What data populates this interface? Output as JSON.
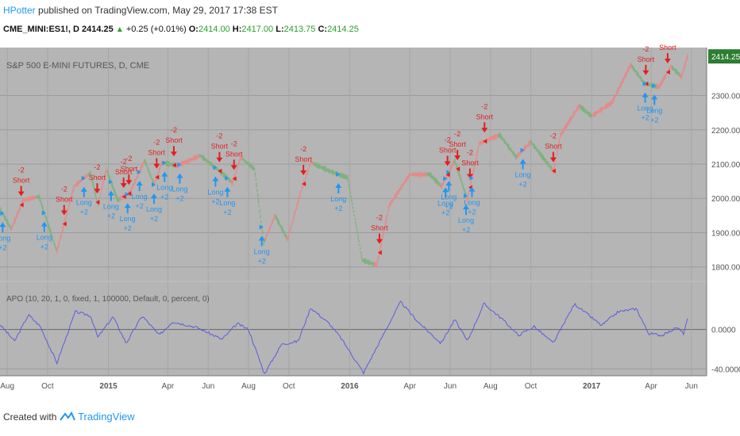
{
  "header": {
    "author": "HPotter",
    "published_text": "published on TradingView.com, May 29, 2017 17:38 EST",
    "symbol": "CME_MINI:ES1!, D",
    "last_price": "2414.25",
    "change": "+0.25 (+0.01%)",
    "o_label": "O:",
    "o_value": "2414.00",
    "h_label": "H:",
    "h_value": "2417.00",
    "l_label": "L:",
    "l_value": "2413.75",
    "c_label": "C:",
    "c_value": "2414.25"
  },
  "footer": {
    "created_with": "Created with",
    "brand": "TradingView"
  },
  "colors": {
    "pane_bg": "#b5b5b5",
    "up_bar": "#e48a8a",
    "down_bar": "#7fb27f",
    "apo_line": "#5b5be0",
    "short_arrow": "#e31e1e",
    "long_arrow": "#2196F3",
    "price_tag": "#2e7d32"
  },
  "chart_data": [
    {
      "type": "line",
      "title": "S&P 500 E-MINI FUTURES, D, CME",
      "price_tag": "2414.25",
      "last_value": 2414.25,
      "ylim": [
        1760,
        2440
      ],
      "y_ticks": [
        1800,
        1900,
        2000,
        2100,
        2200,
        2300
      ],
      "y_tick_labels": [
        "1800.00",
        "1900.00",
        "2000.00",
        "2100.00",
        "2200.00",
        "2300.00"
      ],
      "x_labels": [
        "Aug",
        "Oct",
        "2015",
        "Apr",
        "Jun",
        "Aug",
        "Oct",
        "2016",
        "Apr",
        "Jun",
        "Aug",
        "Oct",
        "2017",
        "Apr",
        "Jun"
      ],
      "x_label_dates": [
        "2014-08-01",
        "2014-10-01",
        "2015-01-01",
        "2015-04-01",
        "2015-06-01",
        "2015-08-01",
        "2015-10-01",
        "2016-01-01",
        "2016-04-01",
        "2016-06-01",
        "2016-08-01",
        "2016-10-01",
        "2017-01-01",
        "2017-04-01",
        "2017-06-01"
      ],
      "x_range": [
        "2014-07-21",
        "2017-06-24"
      ],
      "price_series": [
        [
          "2014-07-21",
          1970
        ],
        [
          "2014-08-07",
          1910
        ],
        [
          "2014-08-25",
          1995
        ],
        [
          "2014-09-18",
          2005
        ],
        [
          "2014-10-15",
          1845
        ],
        [
          "2014-11-10",
          2035
        ],
        [
          "2014-12-05",
          2075
        ],
        [
          "2014-12-16",
          1980
        ],
        [
          "2014-12-29",
          2085
        ],
        [
          "2015-01-15",
          1995
        ],
        [
          "2015-02-02",
          2015
        ],
        [
          "2015-02-25",
          2110
        ],
        [
          "2015-03-11",
          2040
        ],
        [
          "2015-03-23",
          2105
        ],
        [
          "2015-04-15",
          2095
        ],
        [
          "2015-05-20",
          2125
        ],
        [
          "2015-06-15",
          2085
        ],
        [
          "2015-07-08",
          2045
        ],
        [
          "2015-07-20",
          2120
        ],
        [
          "2015-08-10",
          2085
        ],
        [
          "2015-08-24",
          1870
        ],
        [
          "2015-09-10",
          1950
        ],
        [
          "2015-09-29",
          1880
        ],
        [
          "2015-10-20",
          2025
        ],
        [
          "2015-11-03",
          2105
        ],
        [
          "2015-12-01",
          2080
        ],
        [
          "2015-12-29",
          2060
        ],
        [
          "2016-01-20",
          1820
        ],
        [
          "2016-02-11",
          1805
        ],
        [
          "2016-03-01",
          1980
        ],
        [
          "2016-04-01",
          2070
        ],
        [
          "2016-05-01",
          2070
        ],
        [
          "2016-05-19",
          2035
        ],
        [
          "2016-06-08",
          2110
        ],
        [
          "2016-06-27",
          1995
        ],
        [
          "2016-07-15",
          2160
        ],
        [
          "2016-08-15",
          2185
        ],
        [
          "2016-09-09",
          2120
        ],
        [
          "2016-10-01",
          2165
        ],
        [
          "2016-11-04",
          2080
        ],
        [
          "2016-11-15",
          2185
        ],
        [
          "2016-12-13",
          2270
        ],
        [
          "2017-01-01",
          2240
        ],
        [
          "2017-02-01",
          2280
        ],
        [
          "2017-03-01",
          2390
        ],
        [
          "2017-03-22",
          2335
        ],
        [
          "2017-04-13",
          2325
        ],
        [
          "2017-05-01",
          2385
        ],
        [
          "2017-05-17",
          2355
        ],
        [
          "2017-05-26",
          2414.25
        ]
      ],
      "signals": [
        {
          "type": "short",
          "date": "2014-08-22",
          "label": "Short",
          "qty": "-2"
        },
        {
          "type": "long",
          "date": "2014-07-25",
          "label": "Long",
          "qty": "+2"
        },
        {
          "type": "long",
          "date": "2014-09-26",
          "label": "Long",
          "qty": "+2"
        },
        {
          "type": "short",
          "date": "2014-10-26",
          "label": "Short",
          "qty": "-2"
        },
        {
          "type": "long",
          "date": "2014-11-25",
          "label": "Long",
          "qty": "+2"
        },
        {
          "type": "short",
          "date": "2014-12-15",
          "label": "Short",
          "qty": "-2"
        },
        {
          "type": "long",
          "date": "2015-01-05",
          "label": "Long",
          "qty": "+2"
        },
        {
          "type": "short",
          "date": "2015-01-24",
          "label": "Short",
          "qty": "-2"
        },
        {
          "type": "short",
          "date": "2015-02-01",
          "label": "Short",
          "qty": "-2"
        },
        {
          "type": "long",
          "date": "2015-01-30",
          "label": "Long",
          "qty": "+2"
        },
        {
          "type": "long",
          "date": "2015-02-17",
          "label": "Long",
          "qty": "+2"
        },
        {
          "type": "short",
          "date": "2015-03-15",
          "label": "Short",
          "qty": "-2"
        },
        {
          "type": "long",
          "date": "2015-03-11",
          "label": "Long",
          "qty": "+2"
        },
        {
          "type": "long",
          "date": "2015-03-27",
          "label": "Long",
          "qty": "+2"
        },
        {
          "type": "short",
          "date": "2015-04-10",
          "label": "Short",
          "qty": "-2"
        },
        {
          "type": "long",
          "date": "2015-04-19",
          "label": "Long",
          "qty": "+2"
        },
        {
          "type": "short",
          "date": "2015-06-18",
          "label": "Short",
          "qty": "-2"
        },
        {
          "type": "long",
          "date": "2015-06-12",
          "label": "Long",
          "qty": "+2"
        },
        {
          "type": "long",
          "date": "2015-06-30",
          "label": "Long",
          "qty": "+2"
        },
        {
          "type": "short",
          "date": "2015-07-10",
          "label": "Short",
          "qty": "-2"
        },
        {
          "type": "long",
          "date": "2015-08-21",
          "label": "Long",
          "qty": "+2"
        },
        {
          "type": "short",
          "date": "2015-10-23",
          "label": "Short",
          "qty": "-2"
        },
        {
          "type": "long",
          "date": "2015-12-15",
          "label": "Long",
          "qty": "+2"
        },
        {
          "type": "short",
          "date": "2016-02-15",
          "label": "Short",
          "qty": "-2"
        },
        {
          "type": "short",
          "date": "2016-05-28",
          "label": "Short",
          "qty": "-2"
        },
        {
          "type": "long",
          "date": "2016-05-25",
          "label": "Long",
          "qty": "+2"
        },
        {
          "type": "long",
          "date": "2016-05-30",
          "label": "Long",
          "qty": "+2"
        },
        {
          "type": "short",
          "date": "2016-06-12",
          "label": "Short",
          "qty": "-2"
        },
        {
          "type": "short",
          "date": "2016-07-01",
          "label": "Short",
          "qty": "-2"
        },
        {
          "type": "long",
          "date": "2016-06-25",
          "label": "Long",
          "qty": "+2"
        },
        {
          "type": "long",
          "date": "2016-07-04",
          "label": "Long",
          "qty": "+2"
        },
        {
          "type": "short",
          "date": "2016-07-23",
          "label": "Short",
          "qty": "-2"
        },
        {
          "type": "long",
          "date": "2016-09-19",
          "label": "Long",
          "qty": "+2"
        },
        {
          "type": "short",
          "date": "2016-11-04",
          "label": "Short",
          "qty": "-2"
        },
        {
          "type": "short",
          "date": "2017-03-24",
          "label": "Short",
          "qty": "-2"
        },
        {
          "type": "long",
          "date": "2017-03-23",
          "label": "Long",
          "qty": "+2"
        },
        {
          "type": "long",
          "date": "2017-04-06",
          "label": "Long",
          "qty": "+2"
        },
        {
          "type": "short",
          "date": "2017-04-26",
          "label": "Short",
          "qty": "-2"
        }
      ]
    },
    {
      "type": "line",
      "title": "APO (10, 20, 1, 0, fixed, 1, 100000, Default, 0, percent, 0)",
      "ylim": [
        -47,
        48
      ],
      "y_ticks": [
        0,
        -40
      ],
      "y_tick_labels": [
        "0.0000",
        "-40.0000"
      ],
      "series": [
        [
          "2014-07-21",
          5
        ],
        [
          "2014-08-12",
          -12
        ],
        [
          "2014-09-02",
          15
        ],
        [
          "2014-09-20",
          3
        ],
        [
          "2014-10-15",
          -34
        ],
        [
          "2014-11-12",
          18
        ],
        [
          "2014-12-05",
          14
        ],
        [
          "2014-12-16",
          -8
        ],
        [
          "2015-01-08",
          13
        ],
        [
          "2015-01-28",
          -14
        ],
        [
          "2015-02-21",
          14
        ],
        [
          "2015-03-19",
          -6
        ],
        [
          "2015-04-08",
          8
        ],
        [
          "2015-05-15",
          2
        ],
        [
          "2015-06-22",
          -10
        ],
        [
          "2015-07-15",
          6
        ],
        [
          "2015-08-01",
          0
        ],
        [
          "2015-08-25",
          -45
        ],
        [
          "2015-09-20",
          -15
        ],
        [
          "2015-10-15",
          -12
        ],
        [
          "2015-11-03",
          22
        ],
        [
          "2015-12-01",
          6
        ],
        [
          "2015-12-18",
          -8
        ],
        [
          "2016-01-22",
          -44
        ],
        [
          "2016-02-25",
          0
        ],
        [
          "2016-03-18",
          28
        ],
        [
          "2016-04-13",
          8
        ],
        [
          "2016-05-18",
          -14
        ],
        [
          "2016-06-08",
          10
        ],
        [
          "2016-06-27",
          -12
        ],
        [
          "2016-07-22",
          26
        ],
        [
          "2016-08-20",
          10
        ],
        [
          "2016-09-12",
          -6
        ],
        [
          "2016-10-06",
          3
        ],
        [
          "2016-11-04",
          -14
        ],
        [
          "2016-12-06",
          26
        ],
        [
          "2017-01-16",
          4
        ],
        [
          "2017-02-10",
          18
        ],
        [
          "2017-03-10",
          21
        ],
        [
          "2017-03-28",
          -4
        ],
        [
          "2017-04-18",
          -6
        ],
        [
          "2017-05-10",
          2
        ],
        [
          "2017-05-20",
          -4
        ],
        [
          "2017-05-26",
          10
        ]
      ]
    }
  ]
}
